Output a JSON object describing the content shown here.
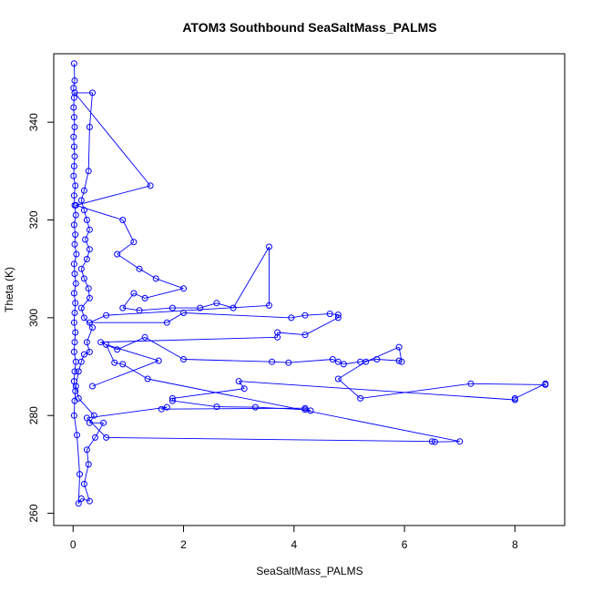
{
  "chart_data": {
    "type": "line",
    "title": "ATOM3 Southbound SeaSaltMass_PALMS",
    "xlabel": "SeaSaltMass_PALMS",
    "ylabel": "Theta (K)",
    "xlim": [
      -0.35,
      8.9
    ],
    "ylim": [
      257.5,
      354
    ],
    "x_ticks": [
      0,
      2,
      4,
      6,
      8
    ],
    "y_ticks": [
      260,
      280,
      300,
      320,
      340
    ],
    "grid": false,
    "legend": "none",
    "colors": {
      "series": "#0000ff",
      "axes": "#000000"
    },
    "markers": "open-circle",
    "series": [
      {
        "values": [
          [
            0.02,
            352
          ],
          [
            0.03,
            348.5
          ],
          [
            0.01,
            347
          ],
          [
            0.02,
            345
          ],
          [
            0.01,
            343
          ],
          [
            0.02,
            341
          ],
          [
            0.03,
            339
          ],
          [
            0.01,
            337
          ],
          [
            0.02,
            335
          ],
          [
            0.03,
            333
          ],
          [
            0.02,
            331
          ],
          [
            0.01,
            329
          ],
          [
            0.04,
            327
          ],
          [
            0.02,
            325
          ],
          [
            0.03,
            323
          ],
          [
            0.05,
            321
          ],
          [
            0.02,
            319
          ],
          [
            0.04,
            317
          ],
          [
            0.03,
            315
          ],
          [
            0.06,
            313
          ],
          [
            0.02,
            311
          ],
          [
            0.03,
            309
          ],
          [
            0.05,
            307
          ],
          [
            0.02,
            305
          ],
          [
            0.04,
            303
          ],
          [
            0.03,
            301
          ],
          [
            0.02,
            299
          ],
          [
            0.04,
            297
          ],
          [
            0.03,
            295
          ],
          [
            0.02,
            293
          ],
          [
            0.05,
            291
          ],
          [
            0.03,
            289
          ],
          [
            0.02,
            287
          ],
          [
            0.04,
            285
          ],
          [
            0.03,
            283
          ],
          [
            0.02,
            280
          ],
          [
            0.07,
            276
          ],
          [
            0.12,
            268
          ],
          [
            0.1,
            262
          ],
          [
            0.15,
            263
          ],
          [
            0.3,
            262.5
          ],
          [
            0.2,
            266
          ],
          [
            0.28,
            270
          ],
          [
            0.25,
            273
          ],
          [
            0.4,
            275.5
          ],
          [
            0.55,
            278.5
          ],
          [
            0.3,
            278.5
          ],
          [
            0.38,
            280
          ],
          [
            0.1,
            283.5
          ],
          [
            0.05,
            286
          ],
          [
            0.1,
            289
          ],
          [
            0.15,
            291
          ],
          [
            0.2,
            292.5
          ],
          [
            0.3,
            293
          ],
          [
            0.25,
            295
          ],
          [
            0.35,
            298
          ],
          [
            0.2,
            300
          ],
          [
            0.15,
            302
          ],
          [
            0.3,
            304
          ],
          [
            0.28,
            306
          ],
          [
            0.2,
            308
          ],
          [
            0.15,
            310
          ],
          [
            0.25,
            312
          ],
          [
            0.3,
            314
          ],
          [
            0.22,
            316
          ],
          [
            0.3,
            318
          ],
          [
            0.25,
            320
          ],
          [
            0.2,
            322
          ],
          [
            0.15,
            324
          ],
          [
            0.2,
            326
          ],
          [
            0.28,
            330
          ],
          [
            0.3,
            339
          ],
          [
            0.35,
            346
          ],
          [
            0.03,
            346
          ],
          [
            1.4,
            327
          ],
          [
            0.05,
            323
          ],
          [
            0.9,
            320
          ],
          [
            1.1,
            315.5
          ],
          [
            0.8,
            313
          ],
          [
            1.2,
            310
          ],
          [
            1.5,
            308
          ],
          [
            2.0,
            306
          ],
          [
            1.3,
            304
          ],
          [
            1.1,
            305
          ],
          [
            0.9,
            302
          ],
          [
            1.2,
            301.5
          ],
          [
            1.8,
            302
          ],
          [
            2.3,
            302
          ],
          [
            2.6,
            303
          ],
          [
            2.9,
            302
          ],
          [
            3.55,
            314.5
          ],
          [
            3.55,
            302.5
          ],
          [
            0.6,
            300.5
          ],
          [
            0.3,
            299
          ],
          [
            1.7,
            299
          ],
          [
            2.0,
            301
          ],
          [
            3.95,
            300
          ],
          [
            4.2,
            300.5
          ],
          [
            4.65,
            300.8
          ],
          [
            4.8,
            300.6
          ],
          [
            4.8,
            300
          ],
          [
            4.2,
            296.5
          ],
          [
            3.7,
            297
          ],
          [
            3.7,
            296
          ],
          [
            0.5,
            295
          ],
          [
            0.8,
            293.5
          ],
          [
            1.3,
            296
          ],
          [
            2.0,
            291.5
          ],
          [
            3.6,
            291
          ],
          [
            3.9,
            290.8
          ],
          [
            4.7,
            291.5
          ],
          [
            4.8,
            291
          ],
          [
            4.9,
            290.5
          ],
          [
            5.2,
            291
          ],
          [
            5.5,
            291.5
          ],
          [
            5.9,
            291.2
          ],
          [
            5.95,
            291
          ],
          [
            5.9,
            294
          ],
          [
            5.3,
            291
          ],
          [
            4.8,
            287.5
          ],
          [
            5.2,
            283.5
          ],
          [
            7.2,
            286.5
          ],
          [
            8.55,
            286.3
          ],
          [
            8.55,
            286.5
          ],
          [
            8.0,
            283.5
          ],
          [
            8.0,
            283.2
          ],
          [
            3.0,
            287
          ],
          [
            3.1,
            285.5
          ],
          [
            1.8,
            283.5
          ],
          [
            1.8,
            283
          ],
          [
            2.6,
            281.8
          ],
          [
            3.3,
            281.7
          ],
          [
            4.2,
            281.2
          ],
          [
            4.3,
            281
          ],
          [
            4.2,
            281.5
          ],
          [
            1.6,
            281.3
          ],
          [
            1.7,
            281.7
          ],
          [
            0.25,
            279.5
          ],
          [
            0.6,
            275.5
          ],
          [
            6.5,
            274.7
          ],
          [
            6.55,
            274.6
          ],
          [
            7.0,
            274.7
          ],
          [
            1.35,
            287.5
          ],
          [
            0.9,
            290.5
          ],
          [
            0.75,
            290.8
          ],
          [
            0.6,
            294.5
          ],
          [
            1.55,
            291.2
          ],
          [
            0.35,
            286
          ]
        ]
      }
    ]
  }
}
